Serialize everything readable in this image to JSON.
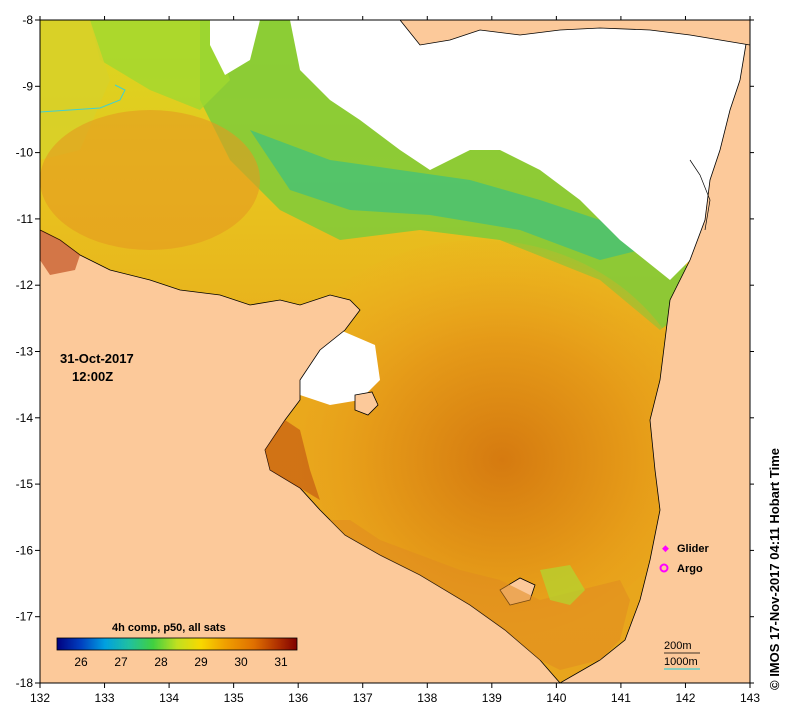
{
  "map": {
    "lon_range": [
      132,
      143
    ],
    "lat_range": [
      -18,
      -8
    ],
    "lon_ticks": [
      "132",
      "133",
      "134",
      "135",
      "136",
      "137",
      "138",
      "139",
      "140",
      "141",
      "142",
      "143"
    ],
    "lat_ticks": [
      "-8",
      "-9",
      "-10",
      "-11",
      "-12",
      "-13",
      "-14",
      "-15",
      "-16",
      "-17",
      "-18"
    ],
    "land_color": "#fcc99a",
    "nodata_color": "#ffffff"
  },
  "date_line1": "31-Oct-2017",
  "date_line2": "12:00Z",
  "colorbar": {
    "title": "4h comp, p50, all sats",
    "ticks": [
      "26",
      "27",
      "28",
      "29",
      "30",
      "31"
    ],
    "min": 25.4,
    "max": 31.4,
    "colors": [
      "#000080",
      "#0040c0",
      "#00a0e0",
      "#20c0a0",
      "#40d040",
      "#c0e020",
      "#f8d800",
      "#f0a000",
      "#e07000",
      "#b03000",
      "#800000"
    ]
  },
  "legend": {
    "glider": "Glider",
    "argo": "Argo",
    "glider_color": "#ff00ff",
    "argo_color": "#ff00ff"
  },
  "contours": {
    "c200": "200m",
    "c1000": "1000m"
  },
  "credit": "© IMOS 17-Nov-2017 04:11 Hobart Time"
}
